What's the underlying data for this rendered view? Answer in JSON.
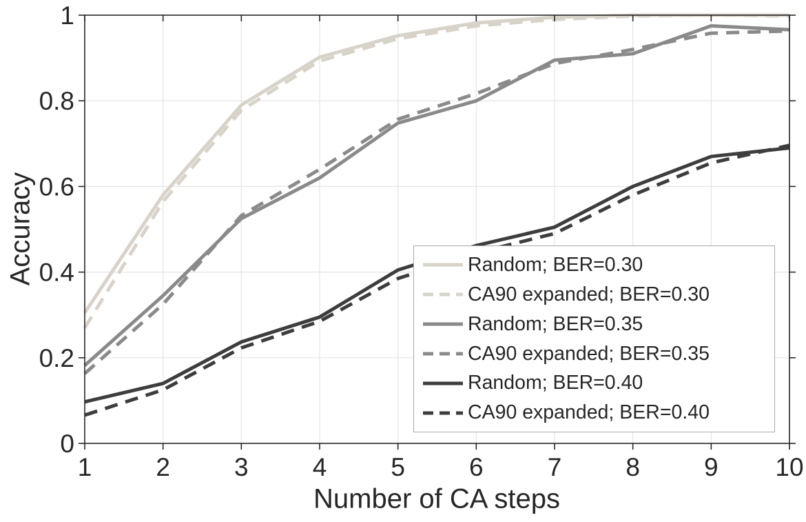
{
  "chart_data": {
    "type": "line",
    "title": "",
    "xlabel": "Number of CA steps",
    "ylabel": "Accuracy",
    "xlim": [
      1,
      10
    ],
    "ylim": [
      0,
      1
    ],
    "x": [
      1,
      2,
      3,
      4,
      5,
      6,
      7,
      8,
      9,
      10
    ],
    "x_tick_labels": [
      "1",
      "2",
      "3",
      "4",
      "5",
      "6",
      "7",
      "8",
      "9",
      "10"
    ],
    "y_ticks": [
      0,
      0.2,
      0.4,
      0.6,
      0.8,
      1
    ],
    "y_tick_labels": [
      "0",
      "0.2",
      "0.4",
      "0.6",
      "0.8",
      "1"
    ],
    "grid": true,
    "legend_position": "inside-lower-right",
    "series": [
      {
        "name": "Random; BER=0.30",
        "style": "solid",
        "color": "#d8d3c9",
        "values": [
          0.305,
          0.58,
          0.79,
          0.902,
          0.952,
          0.982,
          0.995,
          1.0,
          1.0,
          1.0
        ]
      },
      {
        "name": "CA90 expanded; BER=0.30",
        "style": "dashed",
        "color": "#d8d3c9",
        "values": [
          0.27,
          0.565,
          0.778,
          0.893,
          0.945,
          0.975,
          0.99,
          0.998,
          1.0,
          0.998
        ]
      },
      {
        "name": "Random; BER=0.35",
        "style": "solid",
        "color": "#8a8a8a",
        "values": [
          0.182,
          0.345,
          0.525,
          0.62,
          0.748,
          0.8,
          0.895,
          0.91,
          0.975,
          0.966
        ]
      },
      {
        "name": "CA90 expanded; BER=0.35",
        "style": "dashed",
        "color": "#8a8a8a",
        "values": [
          0.163,
          0.325,
          0.532,
          0.64,
          0.757,
          0.817,
          0.887,
          0.92,
          0.958,
          0.963
        ]
      },
      {
        "name": "Random; BER=0.40",
        "style": "solid",
        "color": "#3d3d3d",
        "values": [
          0.097,
          0.14,
          0.237,
          0.295,
          0.405,
          0.462,
          0.505,
          0.6,
          0.67,
          0.69
        ]
      },
      {
        "name": "CA90 expanded; BER=0.40",
        "style": "dashed",
        "color": "#3d3d3d",
        "values": [
          0.066,
          0.125,
          0.223,
          0.285,
          0.385,
          0.445,
          0.49,
          0.58,
          0.655,
          0.696
        ]
      }
    ],
    "axis_color": "#262626",
    "grid_color": "#e4e4e4",
    "tick_label_color": "#262626",
    "background_color": "#ffffff"
  }
}
